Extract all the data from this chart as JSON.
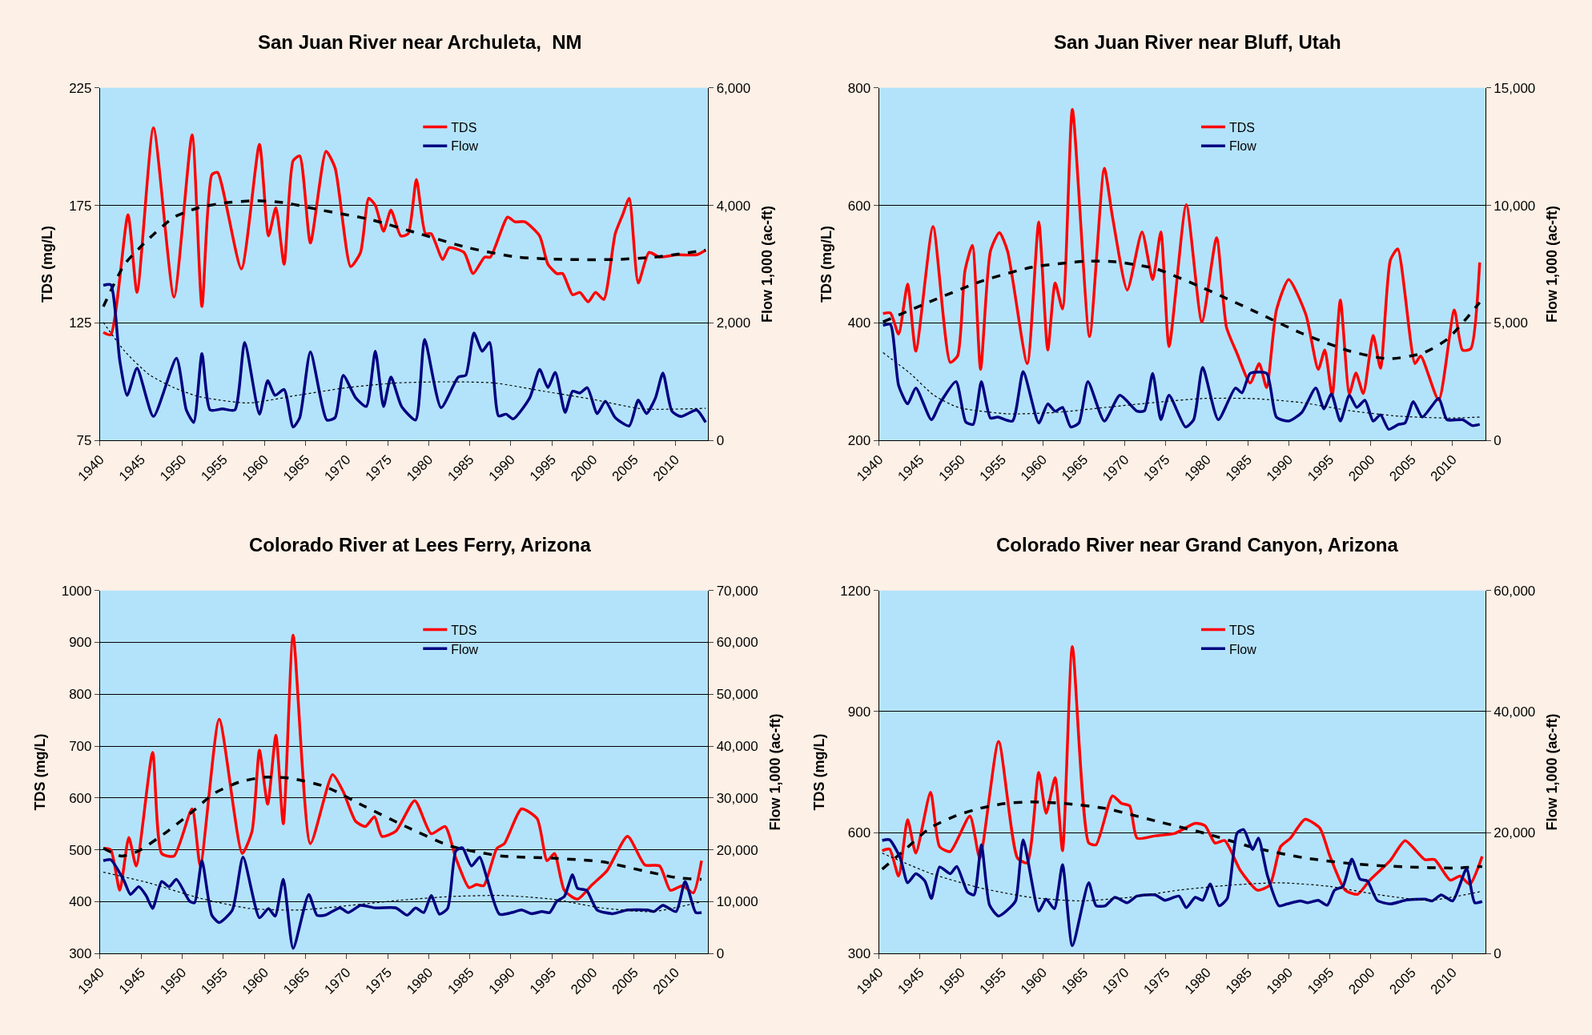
{
  "chart_data": [
    {
      "type": "line",
      "title": "San Juan River near Archuleta,  NM",
      "ylabel": "TDS (mg/L)",
      "y2label": "Flow 1,000 (ac-ft)",
      "xlim": [
        1940,
        2014
      ],
      "xticks": [
        1940,
        1945,
        1950,
        1955,
        1960,
        1965,
        1970,
        1975,
        1980,
        1985,
        1990,
        1995,
        2000,
        2005,
        2010
      ],
      "ylim": [
        75,
        225
      ],
      "yticks": [
        75,
        125,
        175,
        225
      ],
      "y2lim": [
        0,
        6000
      ],
      "y2ticks": [
        0,
        {
          "value": 2000,
          "label": "2,000"
        },
        {
          "value": 4000,
          "label": "4,000"
        },
        {
          "value": 6000,
          "label": "6,000"
        }
      ],
      "grid": "y",
      "legend": "top",
      "series": [
        {
          "name": "TDS",
          "color": "#ff0000",
          "x": [
            1940.4,
            1941.3,
            1943.4,
            1944.5,
            1946.5,
            1949,
            1951.2,
            1952.4,
            1953.6,
            1954.3,
            1957.2,
            1959.4,
            1960.5,
            1961.4,
            1962.4,
            1963.5,
            1964.3,
            1965.6,
            1967.5,
            1968.6,
            1970.5,
            1971.7,
            1972.7,
            1973.5,
            1974.5,
            1975.4,
            1976.6,
            1977.5,
            1978.5,
            1979.6,
            1980.3,
            1981.7,
            1982.5,
            1984.3,
            1985.4,
            1986.8,
            1987.5,
            1989.6,
            1990.5,
            1991.7,
            1993.5,
            1994.5,
            1995.6,
            1996.3,
            1997.5,
            1998.4,
            1999.4,
            2000.3,
            2001.3,
            2002.7,
            2003.6,
            2004.4,
            2005.5,
            2006.8,
            2008.1,
            2010.2,
            2012.6,
            2013.7
          ],
          "values": [
            121,
            120,
            171,
            138,
            208,
            136,
            205,
            132,
            188,
            189,
            148,
            201,
            162,
            174,
            150,
            194,
            196,
            159,
            198,
            191,
            149,
            155,
            178,
            175,
            164,
            173,
            162,
            163,
            186,
            163,
            163,
            152,
            157,
            155,
            146,
            153,
            153,
            170,
            168,
            168,
            162,
            150,
            146,
            146,
            137,
            138,
            134,
            138,
            135,
            163,
            171,
            178,
            142,
            155,
            153,
            154,
            154,
            156
          ]
        },
        {
          "name": "Flow",
          "color": "#000080",
          "axis": "y2",
          "x": [
            1940.4,
            1941.3,
            1942.4,
            1943.3,
            1944.5,
            1946.5,
            1949.3,
            1950.5,
            1951.4,
            1952.4,
            1953.4,
            1954.9,
            1956.4,
            1957.6,
            1959.4,
            1960.4,
            1961.3,
            1962.4,
            1963.5,
            1964.3,
            1965.6,
            1967.6,
            1968.6,
            1969.6,
            1971.1,
            1972.4,
            1973.5,
            1974.5,
            1975.4,
            1976.7,
            1978.4,
            1979.5,
            1981.5,
            1983.6,
            1984.5,
            1985.5,
            1986.5,
            1987.4,
            1988.5,
            1989.4,
            1990.3,
            1992.3,
            1993.5,
            1994.5,
            1995.4,
            1996.6,
            1997.5,
            1998.4,
            1999.3,
            2000.5,
            2001.5,
            2002.7,
            2004.4,
            2005.5,
            2006.5,
            2007.6,
            2008.5,
            2009.6,
            2010.7,
            2012.6,
            2013.7
          ],
          "values": [
            2640,
            2650,
            1360,
            770,
            1230,
            410,
            1400,
            520,
            310,
            1480,
            520,
            540,
            520,
            1670,
            450,
            1020,
            770,
            870,
            230,
            390,
            1510,
            350,
            390,
            1110,
            730,
            580,
            1520,
            580,
            1080,
            580,
            350,
            1720,
            560,
            1080,
            1110,
            1830,
            1520,
            1670,
            420,
            450,
            370,
            730,
            1210,
            900,
            1160,
            480,
            840,
            810,
            900,
            460,
            670,
            390,
            250,
            690,
            460,
            730,
            1150,
            500,
            410,
            520,
            310
          ]
        },
        {
          "color": "#000000",
          "line_style": "dashed",
          "x": [
            1940.4,
            1943,
            1946,
            1949,
            1952,
            1955,
            1959.1,
            1962.7,
            1966.9,
            1972.9,
            1978.8,
            1984.8,
            1990.8,
            1996.8,
            2002.7,
            2007.5,
            2013.7
          ],
          "values": [
            132,
            150,
            161,
            170,
            174,
            176,
            177,
            176,
            173,
            169,
            163,
            157,
            153,
            152,
            152,
            153,
            156
          ]
        },
        {
          "color": "#000000",
          "axis": "y2",
          "line_style": "dotted",
          "x": [
            1940.4,
            1943,
            1946,
            1949,
            1952,
            1958,
            1964,
            1970,
            1976,
            1982,
            1988,
            1994,
            2000,
            2006,
            2013.7
          ],
          "values": [
            2010,
            1520,
            1120,
            900,
            750,
            640,
            770,
            900,
            980,
            1000,
            980,
            840,
            700,
            540,
            550
          ]
        }
      ]
    },
    {
      "type": "line",
      "title": "San Juan River near Bluff, Utah",
      "ylabel": "TDS (mg/L)",
      "y2label": "Flow 1,000 (ac-ft)",
      "xlim": [
        1940,
        2014
      ],
      "xticks": [
        1940,
        1945,
        1950,
        1955,
        1960,
        1965,
        1970,
        1975,
        1980,
        1985,
        1990,
        1995,
        2000,
        2005,
        2010
      ],
      "ylim": [
        200,
        800
      ],
      "yticks": [
        200,
        400,
        600,
        800
      ],
      "y2lim": [
        0,
        15000
      ],
      "y2ticks": [
        0,
        {
          "value": 5000,
          "label": "5,000"
        },
        {
          "value": 10000,
          "label": "10,000"
        },
        {
          "value": 15000,
          "label": "15,000"
        }
      ],
      "grid": "y",
      "legend": "top",
      "series": [
        {
          "name": "TDS",
          "color": "#ff0000",
          "x": [
            1940.5,
            1941.4,
            1942.4,
            1943.5,
            1944.5,
            1946.6,
            1948.7,
            1949.6,
            1950.5,
            1951.4,
            1952.4,
            1953.6,
            1954.7,
            1955.7,
            1958.1,
            1959.5,
            1960.6,
            1961.5,
            1962.4,
            1963.6,
            1965.7,
            1967.5,
            1968.5,
            1970.3,
            1972.1,
            1973.4,
            1974.4,
            1975.4,
            1977.5,
            1979.4,
            1981.2,
            1982.4,
            1983.7,
            1985.3,
            1986.4,
            1987.3,
            1988.5,
            1990,
            1992.1,
            1993.6,
            1994.4,
            1995.3,
            1996.3,
            1997.4,
            1998.2,
            1999.1,
            2000.3,
            2001.2,
            2002.4,
            2003.3,
            2005.4,
            2006.1,
            2008.3,
            2010.2,
            2011.2,
            2012.2,
            2013.3
          ],
          "values": [
            416,
            417,
            381,
            466,
            352,
            564,
            333,
            344,
            489,
            532,
            321,
            522,
            554,
            522,
            331,
            572,
            354,
            468,
            424,
            763,
            377,
            663,
            580,
            456,
            555,
            474,
            555,
            360,
            601,
            402,
            545,
            393,
            348,
            298,
            331,
            290,
            422,
            474,
            414,
            321,
            354,
            277,
            439,
            280,
            315,
            280,
            379,
            323,
            507,
            526,
            331,
            344,
            269,
            422,
            354,
            356,
            503
          ]
        },
        {
          "name": "Flow",
          "color": "#000080",
          "axis": "y2",
          "x": [
            1940.5,
            1941.4,
            1942.4,
            1943.5,
            1944.5,
            1946.4,
            1947.5,
            1949.4,
            1950.6,
            1951.5,
            1952.5,
            1953.6,
            1954.5,
            1956.3,
            1957.6,
            1959.5,
            1960.6,
            1961.5,
            1962.4,
            1963.4,
            1964.4,
            1965.5,
            1967.5,
            1969.4,
            1971.5,
            1972.4,
            1973.4,
            1974.4,
            1975.4,
            1977.4,
            1978.4,
            1979.5,
            1981.4,
            1983.5,
            1984.3,
            1985.3,
            1987.3,
            1988.5,
            1990,
            1991.6,
            1993.3,
            1994.3,
            1995.2,
            1996.3,
            1997.4,
            1998.3,
            1999.3,
            2000.3,
            2001.2,
            2002.2,
            2003.4,
            2004.2,
            2005.2,
            2006.3,
            2008.3,
            2009.3,
            2011.2,
            2012.4,
            2013.3
          ],
          "values": [
            4900,
            4940,
            2350,
            1560,
            2240,
            890,
            1620,
            2510,
            790,
            690,
            2510,
            960,
            1000,
            830,
            2930,
            750,
            1560,
            1250,
            1410,
            580,
            750,
            2510,
            830,
            1930,
            1250,
            1270,
            2860,
            890,
            1930,
            580,
            890,
            3110,
            890,
            2240,
            2030,
            2860,
            2860,
            1000,
            830,
            1200,
            2240,
            1350,
            1990,
            830,
            1930,
            1410,
            1720,
            830,
            1100,
            480,
            690,
            750,
            1660,
            1000,
            1790,
            890,
            890,
            640,
            690
          ]
        },
        {
          "color": "#000000",
          "line_style": "dashed",
          "x": [
            1940.5,
            1946.7,
            1952.7,
            1958.7,
            1965.2,
            1968.8,
            1973.6,
            1979.5,
            1985.5,
            1991.5,
            1997.5,
            2002.2,
            2006.4,
            2009.4,
            2013.3
          ],
          "values": [
            402,
            439,
            472,
            495,
            505,
            504,
            493,
            460,
            422,
            383,
            352,
            339,
            349,
            373,
            435
          ]
        },
        {
          "color": "#000000",
          "axis": "y2",
          "line_style": "dotted",
          "x": [
            1940.5,
            1943.8,
            1946.7,
            1949.7,
            1955.7,
            1961.7,
            1967.6,
            1973.6,
            1979.5,
            1985.5,
            1991.5,
            1997.5,
            2003.4,
            2009.4,
            2013.3
          ],
          "values": [
            3740,
            2860,
            1930,
            1410,
            1140,
            1200,
            1410,
            1620,
            1790,
            1790,
            1620,
            1270,
            1040,
            960,
            1000
          ]
        }
      ]
    },
    {
      "type": "line",
      "title": "Colorado River at Lees Ferry, Arizona",
      "ylabel": "TDS (mg/L)",
      "y2label": "Flow 1,000 (ac-ft)",
      "xlim": [
        1940,
        2014
      ],
      "xticks": [
        1940,
        1945,
        1950,
        1955,
        1960,
        1965,
        1970,
        1975,
        1980,
        1985,
        1990,
        1995,
        2000,
        2005,
        2010
      ],
      "ylim": [
        300,
        1000
      ],
      "yticks": [
        300,
        400,
        500,
        600,
        700,
        800,
        900,
        1000
      ],
      "y2lim": [
        0,
        70000
      ],
      "y2ticks": [
        0,
        {
          "value": 10000,
          "label": "10,000"
        },
        {
          "value": 20000,
          "label": "20,000"
        },
        {
          "value": 30000,
          "label": "30,000"
        },
        {
          "value": 40000,
          "label": "40,000"
        },
        {
          "value": 50000,
          "label": "50,000"
        },
        {
          "value": 60000,
          "label": "60,000"
        },
        {
          "value": 70000,
          "label": "70,000"
        }
      ],
      "grid": "y",
      "legend": "top",
      "series": [
        {
          "name": "TDS",
          "color": "#ff0000",
          "x": [
            1940.4,
            1941.3,
            1942.4,
            1943.5,
            1944.4,
            1946.4,
            1947.5,
            1949,
            1951.2,
            1952.2,
            1954.5,
            1957.3,
            1958.5,
            1959.4,
            1960.4,
            1961.4,
            1962.3,
            1963.5,
            1965.6,
            1968.3,
            1969.6,
            1971.1,
            1972.3,
            1973.4,
            1974.3,
            1976,
            1978.3,
            1980.3,
            1982,
            1983.3,
            1984.9,
            1985.8,
            1986.7,
            1988.3,
            1989.2,
            1991.3,
            1993.2,
            1994.4,
            1995.3,
            1996.5,
            1998.1,
            1999.9,
            2001.7,
            2004.2,
            2006.3,
            2008.1,
            2009.4,
            2010.9,
            2012.2,
            2013.2
          ],
          "values": [
            503,
            500,
            422,
            524,
            469,
            688,
            493,
            488,
            579,
            469,
            752,
            493,
            536,
            692,
            588,
            721,
            550,
            914,
            512,
            645,
            612,
            555,
            545,
            564,
            526,
            536,
            595,
            531,
            545,
            484,
            427,
            433,
            431,
            503,
            512,
            579,
            560,
            479,
            493,
            422,
            405,
            433,
            460,
            526,
            471,
            469,
            422,
            431,
            417,
            479
          ]
        },
        {
          "name": "Flow",
          "color": "#000080",
          "axis": "y2",
          "x": [
            1940.4,
            1941.3,
            1942.9,
            1943.7,
            1944.7,
            1945.6,
            1946.4,
            1947.5,
            1948.4,
            1949.3,
            1950.9,
            1951.5,
            1952.4,
            1953.6,
            1954.5,
            1956.1,
            1957.4,
            1959.4,
            1960.5,
            1961.3,
            1962.3,
            1963.5,
            1965.4,
            1966.4,
            1967.4,
            1969.2,
            1970.2,
            1971.7,
            1973.5,
            1976,
            1977.4,
            1978.4,
            1979.4,
            1980.3,
            1981.3,
            1982.3,
            1983.3,
            1984.1,
            1985.2,
            1986.2,
            1987,
            1988.6,
            1990.1,
            1991.3,
            1992.5,
            1993.8,
            1994.7,
            1995.6,
            1996.5,
            1997.5,
            1998.1,
            1999.2,
            2000.5,
            2002.4,
            2004.2,
            2006.6,
            2007.4,
            2008.5,
            2010.1,
            2011.2,
            2012.5,
            2013.2
          ],
          "values": [
            17900,
            18100,
            14100,
            11400,
            12900,
            11200,
            8700,
            13900,
            12900,
            14300,
            10100,
            9800,
            17900,
            7400,
            6000,
            8400,
            18600,
            6900,
            8700,
            7200,
            14300,
            1000,
            11400,
            7400,
            7400,
            8800,
            7900,
            9300,
            8800,
            8800,
            7400,
            8800,
            7900,
            11200,
            7600,
            8700,
            19800,
            20400,
            16900,
            18600,
            15000,
            7600,
            7900,
            8400,
            7700,
            8100,
            7900,
            10100,
            11000,
            15200,
            12600,
            12200,
            8400,
            7700,
            8400,
            8400,
            8100,
            9300,
            8100,
            13900,
            7900,
            7900
          ]
        },
        {
          "color": "#000000",
          "line_style": "dashed",
          "x": [
            1940.4,
            1942.6,
            1944.7,
            1947.8,
            1950.9,
            1953.9,
            1957,
            1960,
            1963.1,
            1967.4,
            1972.3,
            1977.2,
            1982.7,
            1988.9,
            1995,
            2001.1,
            2006,
            2010.3,
            2013.2
          ],
          "values": [
            503,
            488,
            498,
            531,
            569,
            609,
            631,
            640,
            638,
            622,
            583,
            545,
            507,
            488,
            484,
            477,
            460,
            446,
            443
          ]
        },
        {
          "color": "#000000",
          "axis": "y2",
          "line_style": "dotted",
          "x": [
            1940.4,
            1946,
            1952.1,
            1958.2,
            1964.3,
            1970.5,
            1976.6,
            1982.7,
            1988.9,
            1995,
            2001.1,
            2007.3,
            2013.2
          ],
          "values": [
            15700,
            13600,
            10700,
            8700,
            8400,
            9300,
            10300,
            11000,
            11200,
            10500,
            8800,
            8100,
            10000
          ]
        }
      ]
    },
    {
      "type": "line",
      "title": "Colorado River near Grand Canyon, Arizona",
      "ylabel": "TDS (mg/L)",
      "y2label": "Flow 1,000 (ac-ft)",
      "xlim": [
        1940,
        2014
      ],
      "xticks": [
        1940,
        1945,
        1950,
        1955,
        1960,
        1965,
        1970,
        1975,
        1980,
        1985,
        1990,
        1995,
        2000,
        2005,
        2010
      ],
      "ylim": [
        300,
        1200
      ],
      "yticks": [
        300,
        600,
        900,
        1200
      ],
      "y2lim": [
        0,
        60000
      ],
      "y2ticks": [
        0,
        {
          "value": 20000,
          "label": "20,000"
        },
        {
          "value": 40000,
          "label": "40,000"
        },
        {
          "value": 60000,
          "label": "60,000"
        }
      ],
      "grid": "y",
      "legend": "top",
      "series": [
        {
          "name": "TDS",
          "color": "#ff0000",
          "x": [
            1940.4,
            1941.3,
            1942.4,
            1943.5,
            1944.5,
            1946.3,
            1947.4,
            1948.7,
            1951.1,
            1952.3,
            1954.6,
            1956.9,
            1958.1,
            1959.5,
            1960.4,
            1961.5,
            1962.4,
            1963.6,
            1965.6,
            1966.5,
            1968.5,
            1969.6,
            1970.6,
            1971.5,
            1973.7,
            1976.1,
            1978.6,
            1979.8,
            1981,
            1982.2,
            1984.1,
            1986.2,
            1987.7,
            1989,
            1990.2,
            1992,
            1993.8,
            1995,
            1996.9,
            1998.4,
            1999.9,
            2002.4,
            2004.2,
            2006.6,
            2007.8,
            2009.7,
            2010.9,
            2012.1,
            2013.6
          ],
          "values": [
            555,
            559,
            492,
            632,
            549,
            700,
            565,
            553,
            641,
            537,
            826,
            537,
            525,
            749,
            648,
            736,
            555,
            1061,
            574,
            570,
            691,
            672,
            666,
            586,
            592,
            598,
            623,
            617,
            574,
            580,
            506,
            457,
            470,
            565,
            586,
            633,
            611,
            543,
            457,
            447,
            482,
            531,
            580,
            533,
            533,
            482,
            492,
            472,
            541
          ]
        },
        {
          "name": "Flow",
          "color": "#000080",
          "axis": "y2",
          "x": [
            1940.4,
            1941.3,
            1942.6,
            1943.5,
            1944.5,
            1945.6,
            1946.4,
            1947.4,
            1948.7,
            1949.5,
            1950.8,
            1951.6,
            1952.5,
            1953.5,
            1954.6,
            1956,
            1956.7,
            1957.6,
            1959.5,
            1960.4,
            1961.4,
            1962.4,
            1963.6,
            1965.6,
            1966.5,
            1967.6,
            1968.8,
            1970.3,
            1971.5,
            1973.7,
            1974.9,
            1976.6,
            1977.5,
            1978.6,
            1979.5,
            1980.4,
            1981.5,
            1982.5,
            1983.7,
            1984.5,
            1985.6,
            1986.3,
            1987.4,
            1988.8,
            1989.8,
            1991.4,
            1992.3,
            1993.6,
            1994.7,
            1995.6,
            1996.6,
            1997.7,
            1998.7,
            1999.6,
            2000.8,
            2002.4,
            2004.2,
            2006.6,
            2007.5,
            2008.6,
            2010,
            2011.7,
            2012.7,
            2013.6
          ],
          "values": [
            18700,
            18800,
            15800,
            11700,
            13200,
            12000,
            9100,
            14300,
            13200,
            14400,
            10200,
            9700,
            18000,
            8000,
            6200,
            7600,
            8800,
            18800,
            7000,
            9000,
            7400,
            14700,
            1300,
            11700,
            7900,
            7900,
            9300,
            8400,
            9500,
            9700,
            8800,
            9500,
            7600,
            9300,
            8800,
            11500,
            7900,
            9100,
            19900,
            20500,
            17200,
            19100,
            12900,
            7900,
            8200,
            8700,
            8400,
            8800,
            8000,
            10500,
            11100,
            15600,
            12300,
            12000,
            8800,
            8200,
            8800,
            9000,
            8700,
            9700,
            8700,
            14000,
            8400,
            8600
          ]
        },
        {
          "color": "#000000",
          "line_style": "dashed",
          "x": [
            1940.4,
            1943.2,
            1946.2,
            1949.3,
            1952.3,
            1955.4,
            1958.4,
            1962.7,
            1967.6,
            1973.7,
            1979.8,
            1985.9,
            1992,
            1998.1,
            2004.2,
            2010.3,
            2013.6
          ],
          "values": [
            509,
            558,
            611,
            641,
            660,
            672,
            676,
            672,
            660,
            629,
            598,
            562,
            537,
            522,
            515,
            512,
            516
          ]
        },
        {
          "color": "#000000",
          "axis": "y2",
          "line_style": "dotted",
          "x": [
            1940.4,
            1946.2,
            1952.2,
            1958.4,
            1964.5,
            1970.6,
            1976.7,
            1982.8,
            1988.9,
            1995,
            2001.1,
            2007.2,
            2013.6
          ],
          "values": [
            16600,
            13300,
            10900,
            9300,
            8700,
            9300,
            10500,
            11300,
            11700,
            11100,
            9700,
            8800,
            10300
          ]
        }
      ]
    }
  ]
}
